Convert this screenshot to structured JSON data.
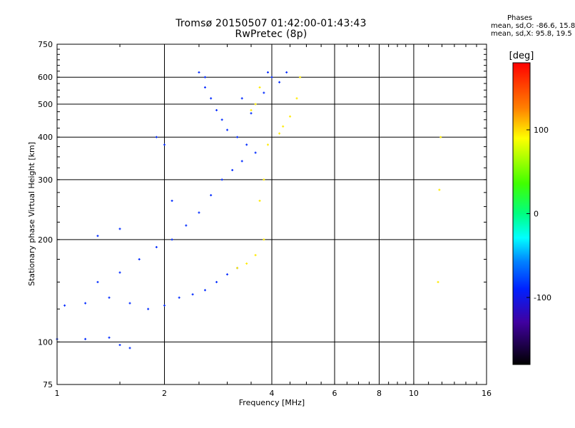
{
  "chart_data": {
    "type": "scatter",
    "title_line1": "Tromsø 20150507 01:42:00-01:43:43",
    "title_line2": "RwPretec (8p)",
    "xlabel": "Frequency [MHz]",
    "ylabel": "Stationary phase Virtual Height [km]",
    "xscale": "log",
    "yscale": "log",
    "xlim": [
      1,
      16
    ],
    "ylim": [
      75,
      750
    ],
    "x_ticks": [
      1,
      2,
      4,
      6,
      8,
      10,
      16
    ],
    "y_ticks": [
      75,
      100,
      200,
      300,
      400,
      500,
      600,
      750
    ],
    "grid": true,
    "phases_box": {
      "title": "Phases",
      "o_stats": "mean, sd,O: -86.6, 15.8",
      "x_stats": "mean, sd,X:  95.8, 19.5"
    },
    "colorbar": {
      "label": "[deg]",
      "range": [
        -180,
        180
      ],
      "ticks": [
        100,
        0,
        -100
      ]
    },
    "series": [
      {
        "mode": "O",
        "phase_deg_mean": -86.6,
        "points": [
          [
            1.0,
            102
          ],
          [
            1.2,
            102
          ],
          [
            1.4,
            103
          ],
          [
            1.5,
            98
          ],
          [
            1.6,
            96
          ],
          [
            1.05,
            128
          ],
          [
            1.2,
            130
          ],
          [
            1.4,
            135
          ],
          [
            1.6,
            130
          ],
          [
            1.8,
            125
          ],
          [
            2.0,
            128
          ],
          [
            2.2,
            135
          ],
          [
            2.4,
            138
          ],
          [
            2.6,
            142
          ],
          [
            2.8,
            150
          ],
          [
            3.0,
            158
          ],
          [
            3.2,
            165
          ],
          [
            1.3,
            150
          ],
          [
            1.5,
            160
          ],
          [
            1.7,
            175
          ],
          [
            1.9,
            190
          ],
          [
            2.1,
            200
          ],
          [
            2.3,
            220
          ],
          [
            2.5,
            240
          ],
          [
            2.7,
            270
          ],
          [
            2.9,
            300
          ],
          [
            3.1,
            320
          ],
          [
            3.3,
            340
          ],
          [
            1.3,
            205
          ],
          [
            1.5,
            215
          ],
          [
            1.9,
            400
          ],
          [
            2.0,
            380
          ],
          [
            2.1,
            260
          ],
          [
            2.5,
            620
          ],
          [
            2.6,
            600
          ],
          [
            2.7,
            520
          ],
          [
            2.8,
            480
          ],
          [
            2.9,
            450
          ],
          [
            3.0,
            420
          ],
          [
            3.2,
            400
          ],
          [
            3.4,
            380
          ],
          [
            3.6,
            360
          ],
          [
            2.6,
            560
          ],
          [
            3.3,
            520
          ],
          [
            3.5,
            470
          ],
          [
            3.9,
            620
          ],
          [
            4.0,
            600
          ],
          [
            4.2,
            580
          ],
          [
            4.4,
            620
          ],
          [
            3.8,
            540
          ]
        ]
      },
      {
        "mode": "X",
        "phase_deg_mean": 95.8,
        "points": [
          [
            3.2,
            165
          ],
          [
            3.4,
            170
          ],
          [
            3.6,
            180
          ],
          [
            3.8,
            200
          ],
          [
            3.7,
            260
          ],
          [
            3.8,
            300
          ],
          [
            3.9,
            380
          ],
          [
            4.2,
            410
          ],
          [
            4.5,
            460
          ],
          [
            4.7,
            520
          ],
          [
            4.8,
            600
          ],
          [
            3.6,
            500
          ],
          [
            3.5,
            480
          ],
          [
            3.7,
            560
          ],
          [
            4.3,
            430
          ],
          [
            11.7,
            150
          ],
          [
            11.8,
            280
          ],
          [
            11.9,
            400
          ]
        ]
      }
    ]
  }
}
